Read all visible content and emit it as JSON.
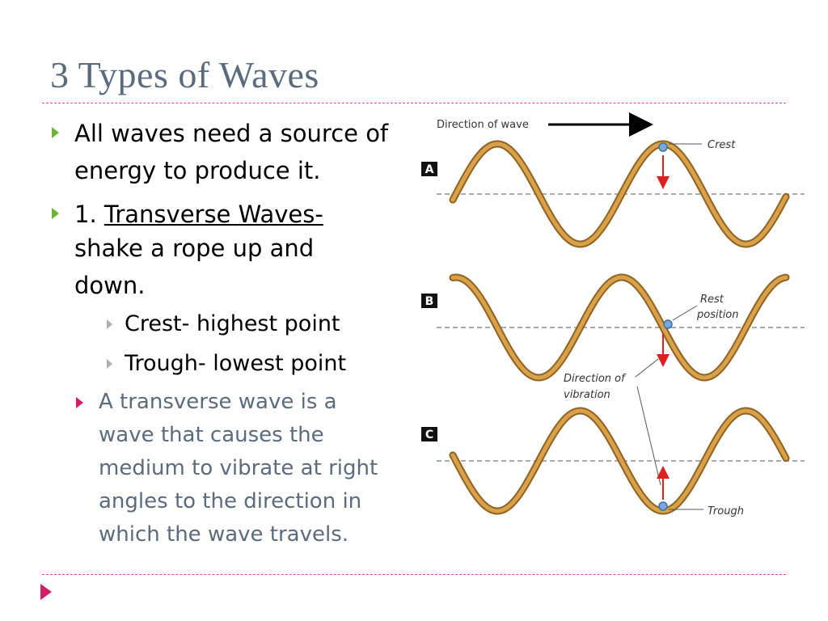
{
  "slide": {
    "title": "3 Types of Waves",
    "bullets": {
      "b1_line1": "All waves need a source of",
      "b1_line2": "energy to produce it.",
      "b2_prefix": "1. ",
      "b2_underlined": "Transverse Waves-",
      "b2_line2": "shake a rope up and",
      "b2_line3": "down.",
      "sub1": "Crest- highest point",
      "sub2": "Trough- lowest point",
      "b3_line1": "A transverse wave is a",
      "b3_line2": "wave that causes the",
      "b3_line3": "medium to vibrate at right",
      "b3_line4": "angles to the direction in",
      "b3_line5": "which the wave travels."
    }
  },
  "figure": {
    "direction_label": "Direction of wave",
    "panel_a": "A",
    "panel_b": "B",
    "panel_c": "C",
    "crest_label": "Crest",
    "rest_label_1": "Rest",
    "rest_label_2": "position",
    "vibration_label_1": "Direction of",
    "vibration_label_2": "vibration",
    "trough_label": "Trough"
  },
  "colors": {
    "title": "#5b6b7d",
    "accent_pink": "#d11d6b",
    "bullet_green": "#6fb23a",
    "wave_rope": "#c9923a",
    "arrow_red": "#e02020"
  }
}
